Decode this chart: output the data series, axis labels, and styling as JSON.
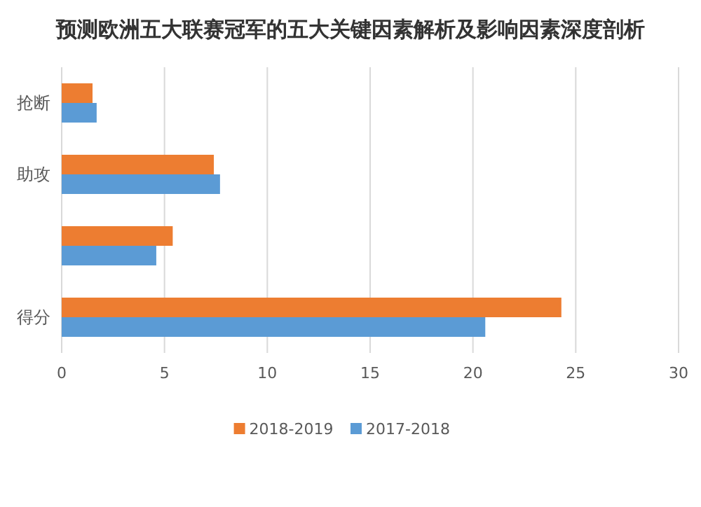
{
  "chart_data": {
    "type": "bar",
    "orientation": "horizontal",
    "title": "预测欧洲五大联赛冠军的五大关键因素解析及影响因素深度剖析",
    "categories": [
      "抢断",
      "助攻",
      null,
      "得分"
    ],
    "series": [
      {
        "name": "2018-2019",
        "color": "#ed7d31",
        "values": [
          1.5,
          7.4,
          5.4,
          24.3
        ]
      },
      {
        "name": "2017-2018",
        "color": "#5b9bd5",
        "values": [
          1.7,
          7.7,
          4.6,
          20.6
        ]
      }
    ],
    "xlim": [
      0,
      30
    ],
    "xticks": [
      0,
      5,
      10,
      15,
      20,
      25,
      30
    ],
    "grid": "x",
    "legend": "bottom"
  }
}
